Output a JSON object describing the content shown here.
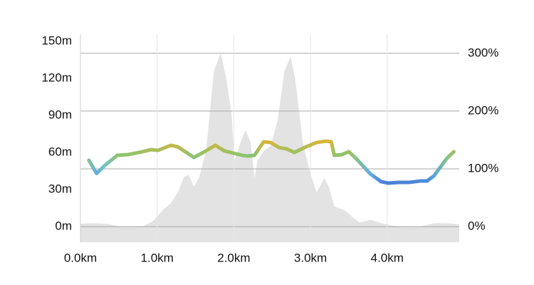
{
  "chart_data": {
    "type": "line",
    "x": [
      0.11,
      0.21,
      0.32,
      0.48,
      0.62,
      0.81,
      0.92,
      1.01,
      1.18,
      1.27,
      1.48,
      1.6,
      1.76,
      1.88,
      2.11,
      2.18,
      2.27,
      2.39,
      2.48,
      2.59,
      2.69,
      2.79,
      2.92,
      3.08,
      3.2,
      3.27,
      3.31,
      3.41,
      3.5,
      3.59,
      3.78,
      3.92,
      4.01,
      4.15,
      4.29,
      4.43,
      4.52,
      4.61,
      4.78,
      4.87
    ],
    "series": [
      {
        "style": "area",
        "axis": "y2",
        "color": "#e3e3e3",
        "x": [
          0,
          0.16,
          0.34,
          0.53,
          0.81,
          0.95,
          1.07,
          1.18,
          1.27,
          1.35,
          1.41,
          1.48,
          1.55,
          1.64,
          1.74,
          1.83,
          1.9,
          1.97,
          2.01,
          2.09,
          2.15,
          2.22,
          2.27,
          2.31,
          2.39,
          2.48,
          2.57,
          2.66,
          2.74,
          2.8,
          2.9,
          2.99,
          3.08,
          3.18,
          3.24,
          3.31,
          3.45,
          3.55,
          3.64,
          3.78,
          3.92,
          4.06,
          4.24,
          4.43,
          4.61,
          4.8,
          4.94
        ],
        "values": [
          5,
          6,
          5,
          0,
          0,
          10,
          28,
          41,
          59,
          86,
          90,
          69,
          86,
          133,
          269,
          300,
          257,
          195,
          115,
          146,
          167,
          146,
          84,
          115,
          131,
          140,
          183,
          269,
          294,
          257,
          146,
          96,
          59,
          84,
          69,
          35,
          28,
          16,
          7,
          12,
          6,
          2,
          0,
          0,
          6,
          6,
          4
        ]
      },
      {
        "style": "line",
        "colors": [
          "#4a7fd6",
          "#6cc6e0",
          "#8dc46c",
          "#d9b43a"
        ],
        "values": [
          53.7,
          43,
          49.6,
          57.7,
          58.3,
          60.6,
          62.3,
          61.7,
          65.8,
          64.6,
          56,
          60,
          65.8,
          61.2,
          57.7,
          57.1,
          57.7,
          68.7,
          68.1,
          64,
          62.9,
          60,
          64,
          68.1,
          69.2,
          68.7,
          57.7,
          58.3,
          60.6,
          55.4,
          42.7,
          36.4,
          35.2,
          35.8,
          35.8,
          36.9,
          36.9,
          41,
          55.4,
          60.6
        ]
      }
    ],
    "xlim": [
      0,
      4.94
    ],
    "xticks": [
      {
        "value": 0,
        "label": "0.0km"
      },
      {
        "value": 1,
        "label": "1.0km"
      },
      {
        "value": 2,
        "label": "2.0km"
      },
      {
        "value": 3,
        "label": "3.0km"
      },
      {
        "value": 4,
        "label": "4.0km"
      }
    ],
    "ylim": [
      -12.7,
      155.8
    ],
    "yticks": [
      {
        "value": 0,
        "label": "0m"
      },
      {
        "value": 30,
        "label": "30m"
      },
      {
        "value": 60,
        "label": "60m"
      },
      {
        "value": 90,
        "label": "90m"
      },
      {
        "value": 120,
        "label": "120m"
      },
      {
        "value": 150,
        "label": "150m"
      }
    ],
    "y2lim": [
      -27,
      333
    ],
    "y2ticks": [
      {
        "value": 0,
        "label": "0%"
      },
      {
        "value": 100,
        "label": "100%"
      },
      {
        "value": 200,
        "label": "200%"
      },
      {
        "value": 300,
        "label": "300%"
      }
    ],
    "grid": true
  }
}
